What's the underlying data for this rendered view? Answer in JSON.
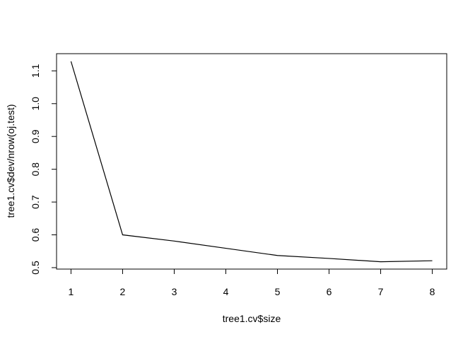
{
  "chart_data": {
    "type": "line",
    "title": "",
    "xlabel": "tree1.cv$size",
    "ylabel": "tree1.cv$dev/nrow(oj.test)",
    "x": [
      1,
      2,
      3,
      4,
      5,
      6,
      7,
      8
    ],
    "y": [
      1.129,
      0.6,
      0.581,
      0.559,
      0.537,
      0.528,
      0.518,
      0.521
    ],
    "xlim": [
      0.72,
      8.28
    ],
    "ylim": [
      0.4956,
      1.1524
    ],
    "xticks": [
      1,
      2,
      3,
      4,
      5,
      6,
      7,
      8
    ],
    "yticks": [
      0.5,
      0.6,
      0.7,
      0.8,
      0.9,
      1.0,
      1.1
    ],
    "xtick_labels": [
      "1",
      "2",
      "3",
      "4",
      "5",
      "6",
      "7",
      "8"
    ],
    "ytick_labels": [
      "0.5",
      "0.6",
      "0.7",
      "0.8",
      "0.9",
      "1.0",
      "1.1"
    ],
    "grid": false,
    "line_color": "#000000"
  }
}
